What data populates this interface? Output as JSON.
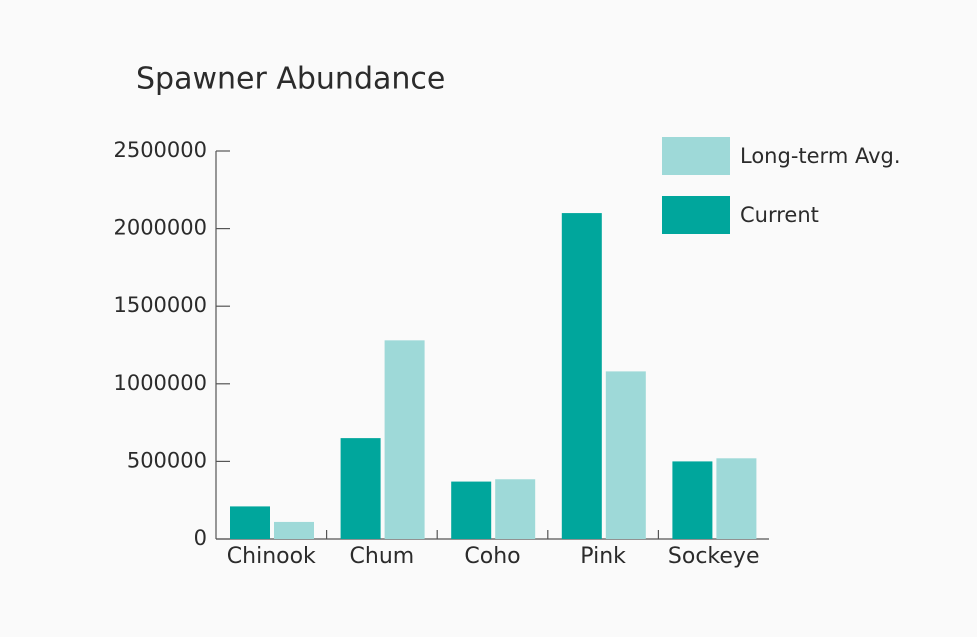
{
  "chart_data": {
    "type": "bar",
    "title": "Spawner Abundance",
    "categories": [
      "Chinook",
      "Chum",
      "Coho",
      "Pink",
      "Sockeye"
    ],
    "series": [
      {
        "name": "Current",
        "color": "#00a69c",
        "values": [
          210000,
          650000,
          370000,
          2100000,
          500000
        ]
      },
      {
        "name": "Long-term Avg.",
        "color": "#9ed9d8",
        "values": [
          110000,
          1280000,
          385000,
          1080000,
          520000
        ]
      }
    ],
    "ylim": [
      0,
      2500000
    ],
    "yticks": [
      0,
      500000,
      1000000,
      1500000,
      2000000,
      2500000
    ],
    "grid": false,
    "legend": "top-right"
  }
}
